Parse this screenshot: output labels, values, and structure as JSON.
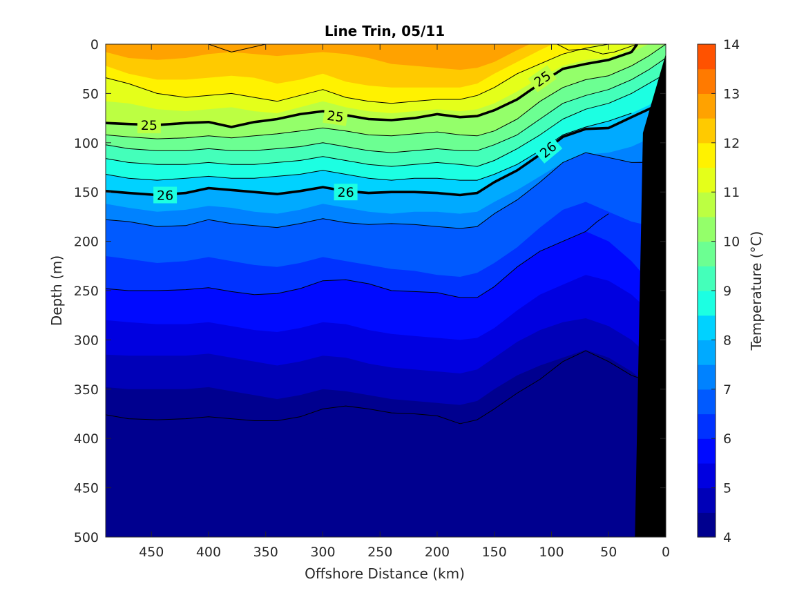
{
  "chart_data": {
    "type": "contour",
    "title": "Line Trin, 05/11",
    "xlabel": "Offshore Distance (km)",
    "ylabel": "Depth (m)",
    "colorbar_label": "Temperature (°C)",
    "xlim": [
      490,
      0
    ],
    "ylim": [
      0,
      500
    ],
    "x_reversed": true,
    "y_reversed": true,
    "xticks": [
      450,
      400,
      350,
      300,
      250,
      200,
      150,
      100,
      50,
      0
    ],
    "yticks": [
      0,
      50,
      100,
      150,
      200,
      250,
      300,
      350,
      400,
      450,
      500
    ],
    "colorbar_ticks": [
      4,
      5,
      6,
      7,
      8,
      9,
      10,
      11,
      12,
      13,
      14
    ],
    "colorbar_range": [
      4,
      14
    ],
    "colorbar_step": 0.5,
    "colormap": [
      "#00008f",
      "#0000b8",
      "#0000e0",
      "#000aff",
      "#0032ff",
      "#005aff",
      "#0082ff",
      "#00aaff",
      "#00d2ff",
      "#1cffe2",
      "#44ffba",
      "#6cff92",
      "#94ff6a",
      "#bcff42",
      "#e4ff1a",
      "#fff200",
      "#ffca00",
      "#ffa200",
      "#ff7a00",
      "#ff5200",
      "#ff2a00",
      "#ff0200",
      "#da0000",
      "#b20000"
    ],
    "isotherm_depths": {
      "x": [
        490,
        470,
        445,
        420,
        400,
        380,
        360,
        340,
        320,
        300,
        280,
        260,
        240,
        220,
        200,
        180,
        165,
        150,
        130,
        110,
        90,
        70,
        50,
        30,
        15,
        0
      ],
      "13.0": [
        -5,
        -5,
        -5,
        -5,
        -5,
        -5,
        -5,
        -5,
        -5,
        -5,
        -5,
        -5,
        -5,
        -5,
        -5,
        -5,
        -5,
        -5,
        -5,
        -5,
        -5,
        -5,
        -5,
        -5,
        -5,
        -5
      ],
      "12.5": [
        8,
        14,
        16,
        14,
        10,
        8,
        10,
        12,
        10,
        8,
        10,
        14,
        20,
        22,
        24,
        26,
        24,
        18,
        6,
        -5,
        -5,
        -5,
        -5,
        -5,
        -5,
        -5
      ],
      "12.0": [
        22,
        30,
        36,
        36,
        34,
        32,
        34,
        40,
        36,
        30,
        38,
        42,
        44,
        44,
        44,
        44,
        40,
        30,
        18,
        6,
        -5,
        -5,
        -5,
        -5,
        -5,
        -5
      ],
      "11.5": [
        34,
        40,
        50,
        54,
        52,
        50,
        54,
        58,
        52,
        46,
        54,
        58,
        60,
        58,
        56,
        56,
        52,
        44,
        30,
        20,
        10,
        4,
        -5,
        -5,
        -5,
        -5
      ],
      "11.0": [
        58,
        60,
        66,
        68,
        66,
        64,
        68,
        70,
        64,
        58,
        64,
        68,
        70,
        68,
        66,
        68,
        66,
        60,
        48,
        34,
        22,
        16,
        14,
        4,
        -5,
        -5
      ],
      "10.5": [
        80,
        81,
        82,
        80,
        79,
        84,
        79,
        76,
        71,
        68,
        72,
        76,
        77,
        75,
        71,
        74,
        73,
        67,
        56,
        40,
        25,
        20,
        16,
        8,
        0,
        -5
      ],
      "10.0": [
        92,
        94,
        96,
        95,
        93,
        95,
        93,
        91,
        88,
        85,
        88,
        92,
        93,
        91,
        89,
        92,
        93,
        88,
        76,
        58,
        44,
        36,
        32,
        22,
        12,
        0
      ],
      "9.5": [
        102,
        106,
        108,
        108,
        106,
        108,
        108,
        106,
        104,
        100,
        104,
        108,
        110,
        108,
        106,
        108,
        108,
        102,
        92,
        76,
        60,
        52,
        46,
        36,
        26,
        14
      ],
      "9.0": [
        116,
        120,
        122,
        122,
        120,
        122,
        122,
        120,
        118,
        114,
        118,
        122,
        124,
        122,
        120,
        122,
        124,
        118,
        106,
        92,
        76,
        66,
        60,
        50,
        40,
        30
      ],
      "8.5": [
        132,
        136,
        138,
        136,
        134,
        136,
        136,
        134,
        132,
        128,
        132,
        136,
        138,
        136,
        136,
        138,
        138,
        132,
        122,
        108,
        92,
        84,
        78,
        70,
        62,
        50
      ],
      "8.0": [
        149,
        151,
        153,
        151,
        146,
        148,
        150,
        152,
        149,
        145,
        149,
        151,
        150,
        150,
        151,
        153,
        151,
        140,
        128,
        112,
        94,
        86,
        85,
        74,
        66,
        58
      ],
      "7.5": [
        162,
        166,
        170,
        168,
        164,
        166,
        170,
        172,
        168,
        162,
        166,
        170,
        172,
        170,
        170,
        172,
        170,
        160,
        148,
        134,
        120,
        112,
        110,
        104,
        96,
        88
      ],
      "7.0": [
        178,
        180,
        185,
        184,
        178,
        182,
        184,
        186,
        182,
        177,
        181,
        183,
        182,
        183,
        185,
        187,
        185,
        172,
        158,
        140,
        120,
        110,
        115,
        120,
        118,
        115
      ],
      "6.5": [
        215,
        218,
        222,
        220,
        216,
        220,
        224,
        226,
        222,
        216,
        220,
        224,
        228,
        230,
        234,
        236,
        232,
        222,
        206,
        186,
        168,
        160,
        170,
        180,
        184,
        186
      ],
      "6.0": [
        248,
        250,
        250,
        249,
        247,
        251,
        254,
        253,
        248,
        240,
        239,
        243,
        250,
        251,
        252,
        257,
        257,
        246,
        226,
        210,
        200,
        190,
        200,
        220,
        240,
        260
      ],
      "5.5": [
        280,
        282,
        284,
        284,
        282,
        286,
        290,
        292,
        288,
        282,
        284,
        290,
        294,
        296,
        298,
        300,
        298,
        288,
        270,
        254,
        244,
        234,
        240,
        254,
        270,
        288
      ],
      "5.0": [
        315,
        316,
        316,
        316,
        314,
        318,
        322,
        326,
        322,
        316,
        318,
        324,
        328,
        330,
        332,
        334,
        330,
        318,
        302,
        290,
        282,
        278,
        286,
        300,
        316,
        332
      ],
      "4.5": [
        348,
        350,
        350,
        350,
        348,
        352,
        356,
        360,
        356,
        350,
        352,
        356,
        360,
        362,
        364,
        366,
        362,
        350,
        336,
        326,
        318,
        310,
        318,
        332,
        346,
        360
      ],
      "4.0": [
        376,
        380,
        381,
        380,
        378,
        380,
        382,
        382,
        378,
        370,
        367,
        370,
        374,
        375,
        377,
        385,
        381,
        370,
        354,
        340,
        322,
        311,
        322,
        336,
        350,
        364
      ],
      "3.5": [
        394,
        392,
        394,
        398,
        404,
        410,
        414,
        414,
        408,
        400,
        402,
        408,
        414,
        418,
        422,
        426,
        424,
        412,
        396,
        380,
        368,
        360,
        364,
        376,
        390,
        404
      ],
      "3.0": [
        440,
        438,
        440,
        444,
        450,
        456,
        458,
        458,
        452,
        444,
        446,
        452,
        458,
        462,
        466,
        470,
        466,
        452,
        436,
        420,
        410,
        404,
        410,
        424,
        440,
        456
      ],
      "2.5": [
        480,
        476,
        474,
        480,
        490,
        496,
        498,
        498,
        496,
        492,
        494,
        498,
        500,
        500,
        500,
        500,
        500,
        494,
        480,
        468,
        460,
        458,
        464,
        478,
        492,
        505
      ]
    },
    "contour_lines": [
      {
        "kind": "thin",
        "x": [
          490,
          470,
          445,
          420,
          400,
          380,
          360,
          340,
          320,
          300,
          280,
          260,
          240,
          220,
          200,
          180,
          165,
          150,
          130,
          110,
          90,
          70,
          50,
          30
        ],
        "depth": [
          34,
          40,
          50,
          54,
          52,
          50,
          54,
          58,
          52,
          46,
          54,
          58,
          60,
          58,
          56,
          56,
          52,
          44,
          30,
          20,
          10,
          4,
          0,
          0
        ]
      },
      {
        "kind": "thin",
        "x": [
          490,
          470,
          445,
          420,
          400,
          380,
          360,
          340,
          320,
          300,
          280,
          260,
          240,
          220,
          200,
          180,
          165,
          150,
          130,
          110,
          90,
          70,
          50,
          30,
          15,
          0
        ],
        "depth": [
          92,
          94,
          96,
          95,
          93,
          95,
          93,
          91,
          88,
          85,
          88,
          92,
          93,
          91,
          89,
          92,
          93,
          88,
          76,
          58,
          44,
          36,
          32,
          22,
          12,
          0
        ]
      },
      {
        "kind": "thin",
        "x": [
          490,
          470,
          445,
          420,
          400,
          380,
          360,
          340,
          320,
          300,
          280,
          260,
          240,
          220,
          200,
          180,
          165,
          150,
          130,
          110,
          90,
          70,
          50,
          30,
          15,
          0
        ],
        "depth": [
          102,
          106,
          108,
          108,
          106,
          108,
          108,
          106,
          104,
          100,
          104,
          108,
          110,
          108,
          106,
          108,
          108,
          102,
          92,
          76,
          60,
          52,
          46,
          36,
          26,
          14
        ]
      },
      {
        "kind": "thin",
        "x": [
          490,
          470,
          445,
          420,
          400,
          380,
          360,
          340,
          320,
          300,
          280,
          260,
          240,
          220,
          200,
          180,
          165,
          150,
          130,
          110,
          90,
          70,
          50,
          30,
          15,
          0
        ],
        "depth": [
          116,
          120,
          122,
          122,
          120,
          122,
          122,
          120,
          118,
          114,
          118,
          122,
          124,
          122,
          120,
          122,
          124,
          118,
          106,
          92,
          76,
          66,
          60,
          50,
          40,
          30
        ]
      },
      {
        "kind": "thin",
        "x": [
          490,
          470,
          445,
          420,
          400,
          380,
          360,
          340,
          320,
          300,
          280,
          260,
          240,
          220,
          200,
          180,
          165,
          150,
          130,
          110,
          90,
          70,
          50,
          30
        ],
        "depth": [
          132,
          136,
          138,
          136,
          134,
          136,
          136,
          134,
          132,
          128,
          132,
          136,
          138,
          136,
          136,
          138,
          138,
          132,
          122,
          108,
          92,
          84,
          78,
          70
        ]
      },
      {
        "kind": "thin",
        "x": [
          490,
          470,
          445,
          420,
          400,
          380,
          360,
          340,
          320,
          300,
          280,
          260,
          240,
          220,
          200,
          180,
          165,
          150,
          130,
          110,
          90,
          70,
          50,
          30,
          20
        ],
        "depth": [
          178,
          180,
          185,
          184,
          178,
          182,
          184,
          186,
          182,
          177,
          181,
          183,
          182,
          183,
          185,
          187,
          185,
          172,
          158,
          140,
          120,
          110,
          115,
          120,
          120
        ]
      },
      {
        "kind": "thin",
        "x": [
          490,
          470,
          445,
          420,
          400,
          380,
          360,
          340,
          320,
          300,
          280,
          260,
          240,
          220,
          200,
          180,
          165,
          150,
          130,
          110,
          90,
          70,
          60,
          50
        ],
        "depth": [
          248,
          250,
          250,
          249,
          247,
          251,
          254,
          253,
          248,
          240,
          239,
          243,
          250,
          251,
          252,
          257,
          257,
          246,
          226,
          210,
          200,
          190,
          180,
          172
        ]
      },
      {
        "kind": "thin",
        "x": [
          490,
          470,
          445,
          420,
          400,
          380,
          360,
          340,
          320,
          300,
          280,
          260,
          240,
          220,
          200,
          180,
          165,
          150,
          130,
          110,
          90,
          70,
          50,
          30,
          20
        ],
        "depth": [
          376,
          380,
          381,
          380,
          378,
          380,
          382,
          382,
          378,
          370,
          367,
          370,
          374,
          375,
          377,
          385,
          381,
          370,
          354,
          340,
          322,
          311,
          322,
          336,
          340
        ]
      },
      {
        "kind": "thin",
        "x": [
          450,
          400,
          380,
          350,
          300,
          270,
          240,
          200,
          160,
          120,
          100,
          70,
          50,
          30,
          20
        ],
        "depth": [
          0,
          0,
          8,
          0,
          -5,
          -5,
          -5,
          -5,
          -5,
          -5,
          -5,
          -5,
          0,
          0,
          0
        ]
      },
      {
        "kind": "thin",
        "x": [
          110,
          95,
          85,
          70,
          55,
          45,
          35,
          25
        ],
        "depth": [
          0,
          0,
          6,
          5,
          10,
          8,
          4,
          0
        ]
      },
      {
        "kind": "thick",
        "label": "25",
        "x": [
          490,
          470,
          445,
          420,
          400,
          380,
          360,
          340,
          320,
          300,
          280,
          260,
          240,
          220,
          200,
          180,
          165,
          150,
          130,
          110,
          90,
          70,
          50,
          30,
          25
        ],
        "depth": [
          80,
          81,
          82,
          80,
          79,
          84,
          79,
          76,
          71,
          68,
          72,
          76,
          77,
          75,
          71,
          74,
          73,
          67,
          56,
          40,
          25,
          20,
          16,
          8,
          0
        ]
      },
      {
        "kind": "thick",
        "label": "26",
        "x": [
          490,
          470,
          445,
          420,
          400,
          380,
          360,
          340,
          320,
          300,
          280,
          260,
          240,
          220,
          200,
          180,
          165,
          150,
          130,
          110,
          90,
          70,
          50,
          30,
          15,
          0
        ],
        "depth": [
          149,
          151,
          153,
          151,
          146,
          148,
          150,
          152,
          149,
          145,
          149,
          151,
          150,
          150,
          151,
          153,
          151,
          140,
          128,
          112,
          94,
          86,
          85,
          74,
          66,
          58
        ]
      }
    ],
    "contour_labels": [
      {
        "text": "25",
        "x": 452,
        "depth": 82,
        "angle": 0
      },
      {
        "text": "25",
        "x": 289,
        "depth": 73,
        "angle": 8
      },
      {
        "text": "25",
        "x": 108,
        "depth": 35,
        "angle": -35
      },
      {
        "text": "26",
        "x": 438,
        "depth": 153,
        "angle": 0
      },
      {
        "text": "26",
        "x": 280,
        "depth": 150,
        "angle": 0
      },
      {
        "text": "26",
        "x": 103,
        "depth": 107,
        "angle": -40
      }
    ],
    "land_mask": {
      "x": [
        27,
        20,
        0,
        0
      ],
      "depth": [
        500,
        90,
        10,
        500
      ],
      "color": "#000000"
    }
  }
}
